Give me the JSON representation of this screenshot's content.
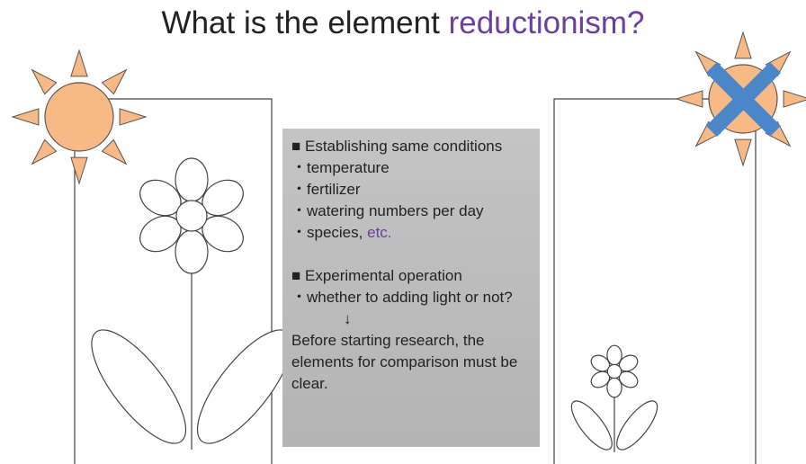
{
  "title": {
    "text": "What is the element",
    "highlight": "reductionism?"
  },
  "panel": {
    "conditions": {
      "heading": "■ Establishing same conditions",
      "items": [
        "・temperature",
        "・fertilizer",
        "・watering numbers per day"
      ],
      "last_item": {
        "text": "・species,",
        "highlight": "etc."
      }
    },
    "operation": {
      "heading": "■ Experimental operation",
      "item": "・whether to adding light or not?",
      "arrow": "↓",
      "conclusion": "Before starting research, the elements for comparison must be clear."
    }
  }
}
